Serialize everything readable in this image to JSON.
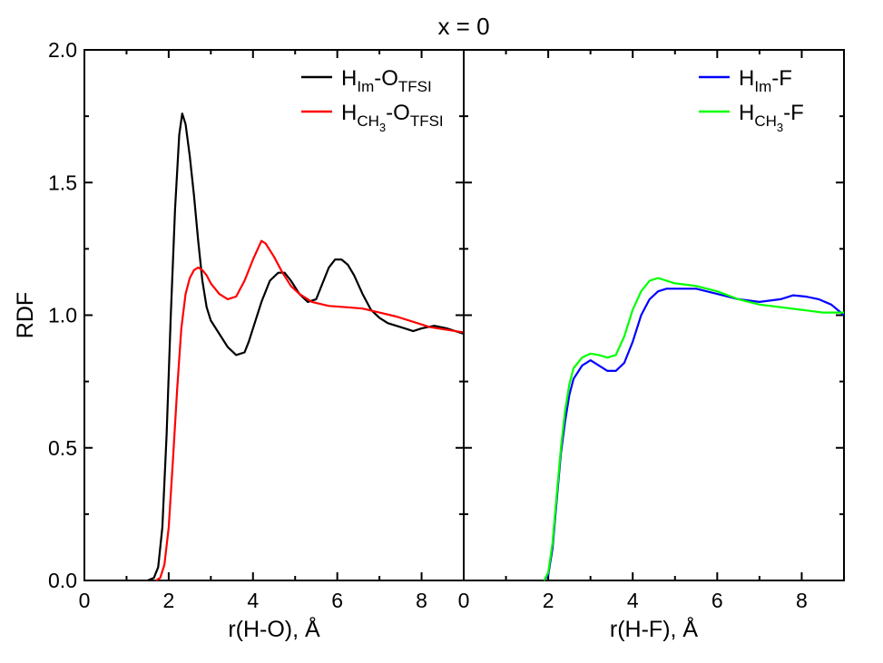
{
  "title": "x = 0",
  "chart_data": [
    {
      "type": "line",
      "ylabel": "RDF",
      "xlabel": "r(H-O), Å",
      "xlim": [
        0,
        9
      ],
      "ylim": [
        0,
        2
      ],
      "x_ticks": [
        0,
        2,
        4,
        6,
        8
      ],
      "y_ticks": [
        0.0,
        0.5,
        1.0,
        1.5,
        2.0
      ],
      "y_tick_labels": [
        "0.0",
        "0.5",
        "1.0",
        "1.5",
        "2.0"
      ],
      "legend_position": "top-right",
      "series": [
        {
          "name": "H_Im-O_TFSI",
          "legend": {
            "base": "H",
            "sub1": "Im",
            "mid": "-O",
            "sub2": "TFSI",
            "sub2sub": ""
          },
          "color": "#000000",
          "points": [
            [
              1.5,
              0
            ],
            [
              1.65,
              0.01
            ],
            [
              1.75,
              0.05
            ],
            [
              1.85,
              0.2
            ],
            [
              1.95,
              0.55
            ],
            [
              2.05,
              1.0
            ],
            [
              2.15,
              1.4
            ],
            [
              2.25,
              1.68
            ],
            [
              2.32,
              1.76
            ],
            [
              2.4,
              1.72
            ],
            [
              2.5,
              1.6
            ],
            [
              2.6,
              1.45
            ],
            [
              2.7,
              1.28
            ],
            [
              2.8,
              1.13
            ],
            [
              2.9,
              1.03
            ],
            [
              3.0,
              0.98
            ],
            [
              3.2,
              0.93
            ],
            [
              3.4,
              0.88
            ],
            [
              3.6,
              0.85
            ],
            [
              3.8,
              0.86
            ],
            [
              3.9,
              0.9
            ],
            [
              4.0,
              0.95
            ],
            [
              4.2,
              1.05
            ],
            [
              4.4,
              1.13
            ],
            [
              4.6,
              1.16
            ],
            [
              4.75,
              1.16
            ],
            [
              4.9,
              1.13
            ],
            [
              5.1,
              1.08
            ],
            [
              5.3,
              1.05
            ],
            [
              5.5,
              1.06
            ],
            [
              5.65,
              1.12
            ],
            [
              5.8,
              1.18
            ],
            [
              5.95,
              1.21
            ],
            [
              6.1,
              1.21
            ],
            [
              6.25,
              1.19
            ],
            [
              6.4,
              1.15
            ],
            [
              6.6,
              1.08
            ],
            [
              6.8,
              1.02
            ],
            [
              7.0,
              0.99
            ],
            [
              7.2,
              0.97
            ],
            [
              7.4,
              0.96
            ],
            [
              7.6,
              0.95
            ],
            [
              7.8,
              0.94
            ],
            [
              8.0,
              0.95
            ],
            [
              8.3,
              0.96
            ],
            [
              8.6,
              0.95
            ],
            [
              9.0,
              0.93
            ]
          ]
        },
        {
          "name": "H_CH3-O_TFSI",
          "legend": {
            "base": "H",
            "sub1": "CH",
            "mid": "-O",
            "sub2": "TFSI",
            "sub2sub": "3"
          },
          "color": "#ff0000",
          "points": [
            [
              1.7,
              0
            ],
            [
              1.8,
              0.01
            ],
            [
              1.9,
              0.06
            ],
            [
              2.0,
              0.2
            ],
            [
              2.1,
              0.45
            ],
            [
              2.2,
              0.72
            ],
            [
              2.3,
              0.95
            ],
            [
              2.4,
              1.08
            ],
            [
              2.5,
              1.14
            ],
            [
              2.6,
              1.17
            ],
            [
              2.7,
              1.18
            ],
            [
              2.8,
              1.17
            ],
            [
              2.9,
              1.15
            ],
            [
              3.0,
              1.12
            ],
            [
              3.2,
              1.08
            ],
            [
              3.4,
              1.06
            ],
            [
              3.6,
              1.07
            ],
            [
              3.8,
              1.13
            ],
            [
              4.0,
              1.21
            ],
            [
              4.2,
              1.28
            ],
            [
              4.3,
              1.27
            ],
            [
              4.5,
              1.22
            ],
            [
              4.7,
              1.16
            ],
            [
              4.9,
              1.11
            ],
            [
              5.1,
              1.08
            ],
            [
              5.4,
              1.05
            ],
            [
              5.8,
              1.035
            ],
            [
              6.2,
              1.03
            ],
            [
              6.6,
              1.025
            ],
            [
              7.0,
              1.01
            ],
            [
              7.4,
              0.995
            ],
            [
              7.8,
              0.975
            ],
            [
              8.2,
              0.955
            ],
            [
              8.6,
              0.945
            ],
            [
              9.0,
              0.935
            ]
          ]
        }
      ]
    },
    {
      "type": "line",
      "xlabel": "r(H-F), Å",
      "xlim": [
        0,
        9
      ],
      "ylim": [
        0,
        2
      ],
      "x_ticks": [
        0,
        2,
        4,
        6,
        8
      ],
      "legend_position": "top-right",
      "series": [
        {
          "name": "H_Im-F",
          "legend": {
            "base": "H",
            "sub1": "Im",
            "mid": "-F",
            "sub2": "",
            "sub2sub": ""
          },
          "color": "#0000ff",
          "points": [
            [
              1.9,
              0
            ],
            [
              2.0,
              0.02
            ],
            [
              2.1,
              0.12
            ],
            [
              2.2,
              0.3
            ],
            [
              2.3,
              0.48
            ],
            [
              2.4,
              0.6
            ],
            [
              2.5,
              0.7
            ],
            [
              2.6,
              0.76
            ],
            [
              2.8,
              0.81
            ],
            [
              3.0,
              0.83
            ],
            [
              3.2,
              0.81
            ],
            [
              3.4,
              0.79
            ],
            [
              3.6,
              0.79
            ],
            [
              3.8,
              0.82
            ],
            [
              4.0,
              0.9
            ],
            [
              4.2,
              1.0
            ],
            [
              4.4,
              1.06
            ],
            [
              4.6,
              1.09
            ],
            [
              4.8,
              1.1
            ],
            [
              5.0,
              1.1
            ],
            [
              5.5,
              1.1
            ],
            [
              6.0,
              1.08
            ],
            [
              6.5,
              1.06
            ],
            [
              7.0,
              1.05
            ],
            [
              7.5,
              1.06
            ],
            [
              7.8,
              1.075
            ],
            [
              8.1,
              1.07
            ],
            [
              8.4,
              1.06
            ],
            [
              8.7,
              1.04
            ],
            [
              9.0,
              1.0
            ]
          ]
        },
        {
          "name": "H_CH3-F",
          "legend": {
            "base": "H",
            "sub1": "CH",
            "mid": "-F",
            "sub2": "",
            "sub2sub": "3"
          },
          "color": "#00ff00",
          "points": [
            [
              1.9,
              0
            ],
            [
              2.0,
              0.03
            ],
            [
              2.1,
              0.14
            ],
            [
              2.2,
              0.32
            ],
            [
              2.3,
              0.5
            ],
            [
              2.4,
              0.64
            ],
            [
              2.5,
              0.74
            ],
            [
              2.6,
              0.8
            ],
            [
              2.8,
              0.84
            ],
            [
              3.0,
              0.855
            ],
            [
              3.2,
              0.85
            ],
            [
              3.4,
              0.84
            ],
            [
              3.6,
              0.85
            ],
            [
              3.8,
              0.92
            ],
            [
              4.0,
              1.02
            ],
            [
              4.2,
              1.09
            ],
            [
              4.4,
              1.13
            ],
            [
              4.6,
              1.14
            ],
            [
              4.8,
              1.13
            ],
            [
              5.0,
              1.12
            ],
            [
              5.5,
              1.11
            ],
            [
              6.0,
              1.09
            ],
            [
              6.5,
              1.06
            ],
            [
              7.0,
              1.04
            ],
            [
              7.5,
              1.03
            ],
            [
              8.0,
              1.02
            ],
            [
              8.5,
              1.01
            ],
            [
              9.0,
              1.01
            ]
          ]
        }
      ]
    }
  ]
}
